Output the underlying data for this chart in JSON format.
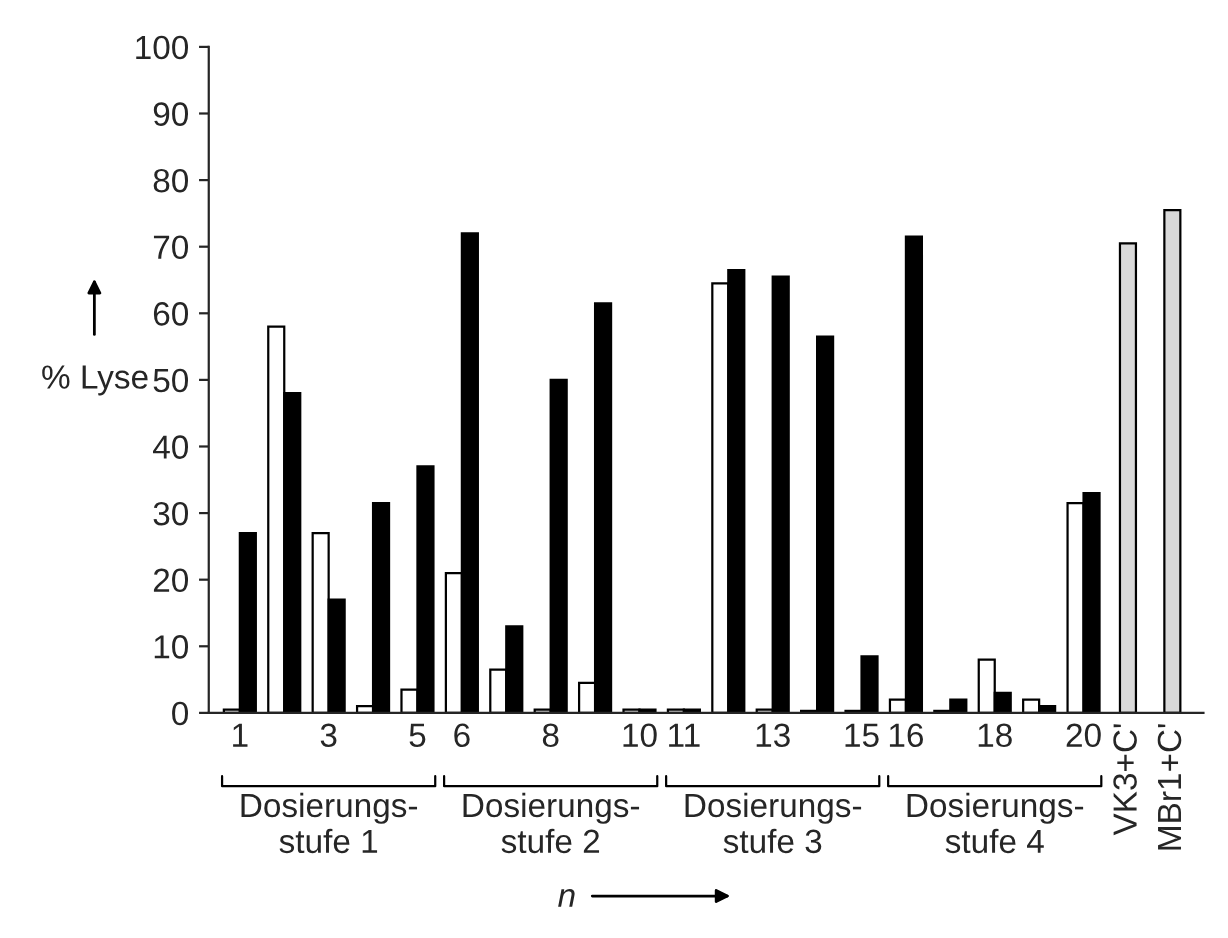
{
  "chart_data": {
    "type": "bar",
    "ylabel": "% Lyse",
    "xlabel": "n",
    "categories": [
      "1",
      null,
      "3",
      null,
      "5",
      "6",
      null,
      "8",
      null,
      "10",
      "11",
      null,
      "13",
      null,
      "15",
      "16",
      null,
      "18",
      null,
      "20",
      "VK3+C'",
      "MBr1+C'"
    ],
    "series": [
      {
        "color": "#ffffff",
        "values": [
          0.5,
          58,
          27,
          1,
          3.5,
          21,
          6.5,
          0.5,
          4.5,
          0.5,
          0.5,
          64.5,
          0.5,
          0.3,
          0.3,
          2,
          0.3,
          8,
          2,
          31.5,
          null,
          null
        ]
      },
      {
        "color": "#000000",
        "values": [
          27,
          48,
          17,
          31.5,
          37,
          72,
          13,
          50,
          61.5,
          0.5,
          0.5,
          66.5,
          65.5,
          56.5,
          8.5,
          71.5,
          2,
          3,
          1,
          33,
          null,
          null
        ]
      },
      {
        "color": "#d9d9d9",
        "values": [
          null,
          null,
          null,
          null,
          null,
          null,
          null,
          null,
          null,
          null,
          null,
          null,
          null,
          null,
          null,
          null,
          null,
          null,
          null,
          null,
          70.5,
          75.5
        ]
      }
    ],
    "ylim": [
      0,
      100
    ],
    "yticks": [
      0,
      10,
      20,
      30,
      40,
      50,
      60,
      70,
      80,
      90,
      100
    ],
    "grid": false,
    "legend": false,
    "annotations": [
      "Dosierungs-\nstufe 1",
      "Dosierungs-\nstufe 2",
      "Dosierungs-\nstufe 3",
      "Dosierungs-\nstufe 4"
    ]
  }
}
